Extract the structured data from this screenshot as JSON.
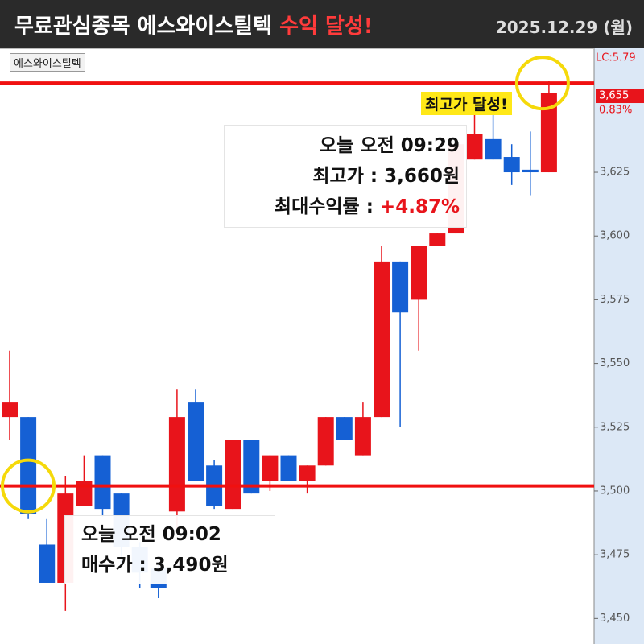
{
  "header": {
    "title": "무료관심종목 에스와이스틸텍",
    "title_highlight": "수익 달성!",
    "date": "2025.12.29 (월)"
  },
  "chart_data": {
    "type": "candlestick",
    "tab": "에스와이스틸텍",
    "up_color": "#e8141b",
    "down_color": "#1560d4",
    "ylim": [
      3440,
      3673
    ],
    "yticks": [
      {
        "value": 3450,
        "label": "3,450"
      },
      {
        "value": 3475,
        "label": "3,475"
      },
      {
        "value": 3500,
        "label": "3,500"
      },
      {
        "value": 3525,
        "label": "3,525"
      },
      {
        "value": 3550,
        "label": "3,550"
      },
      {
        "value": 3575,
        "label": "3,575"
      },
      {
        "value": 3600,
        "label": "3,600"
      },
      {
        "value": 3625,
        "label": "3,625"
      }
    ],
    "price_box": {
      "value": 3655,
      "label": "3,655",
      "change": "0.83%",
      "lc": "LC:5.79"
    },
    "hlines": [
      3660,
      3502
    ],
    "candles": [
      {
        "open": 3529,
        "high": 3555,
        "low": 3520,
        "close": 3535
      },
      {
        "open": 3529,
        "high": 3529,
        "low": 3489,
        "close": 3491
      },
      {
        "open": 3479,
        "high": 3489,
        "low": 3464,
        "close": 3464
      },
      {
        "open": 3464,
        "high": 3506,
        "low": 3453,
        "close": 3499
      },
      {
        "open": 3494,
        "high": 3514,
        "low": 3494,
        "close": 3504
      },
      {
        "open": 3514,
        "high": 3514,
        "low": 3490,
        "close": 3493
      },
      {
        "open": 3499,
        "high": 3499,
        "low": 3470,
        "close": 3478
      },
      {
        "open": 3478,
        "high": 3480,
        "low": 3462,
        "close": 3468
      },
      {
        "open": 3470,
        "high": 3472,
        "low": 3458,
        "close": 3462
      },
      {
        "open": 3492,
        "high": 3540,
        "low": 3485,
        "close": 3529
      },
      {
        "open": 3535,
        "high": 3540,
        "low": 3504,
        "close": 3504
      },
      {
        "open": 3510,
        "high": 3512,
        "low": 3493,
        "close": 3494
      },
      {
        "open": 3493,
        "high": 3520,
        "low": 3493,
        "close": 3520
      },
      {
        "open": 3520,
        "high": 3520,
        "low": 3499,
        "close": 3499
      },
      {
        "open": 3504,
        "high": 3514,
        "low": 3500,
        "close": 3514
      },
      {
        "open": 3514,
        "high": 3514,
        "low": 3504,
        "close": 3504
      },
      {
        "open": 3504,
        "high": 3510,
        "low": 3499,
        "close": 3510
      },
      {
        "open": 3510,
        "high": 3529,
        "low": 3510,
        "close": 3529
      },
      {
        "open": 3529,
        "high": 3529,
        "low": 3520,
        "close": 3520
      },
      {
        "open": 3514,
        "high": 3535,
        "low": 3514,
        "close": 3529
      },
      {
        "open": 3529,
        "high": 3596,
        "low": 3529,
        "close": 3590
      },
      {
        "open": 3590,
        "high": 3590,
        "low": 3525,
        "close": 3570
      },
      {
        "open": 3575,
        "high": 3596,
        "low": 3555,
        "close": 3596
      },
      {
        "open": 3596,
        "high": 3601,
        "low": 3596,
        "close": 3601
      },
      {
        "open": 3601,
        "high": 3636,
        "low": 3601,
        "close": 3636
      },
      {
        "open": 3630,
        "high": 3649,
        "low": 3630,
        "close": 3640
      },
      {
        "open": 3638,
        "high": 3649,
        "low": 3630,
        "close": 3630
      },
      {
        "open": 3631,
        "high": 3636,
        "low": 3620,
        "close": 3625
      },
      {
        "open": 3626,
        "high": 3641,
        "low": 3616,
        "close": 3625
      },
      {
        "open": 3625,
        "high": 3661,
        "low": 3625,
        "close": 3656
      }
    ],
    "annotations": {
      "high_tag": "최고가 달성!",
      "high_box": {
        "time": "오늘 오전 09:29",
        "price": "최고가 : 3,660원",
        "return_label": "최대수익률 : ",
        "return_value": "+4.87%"
      },
      "buy_box": {
        "time": "오늘 오전 09:02",
        "price": "매수가 : 3,490원"
      }
    }
  }
}
